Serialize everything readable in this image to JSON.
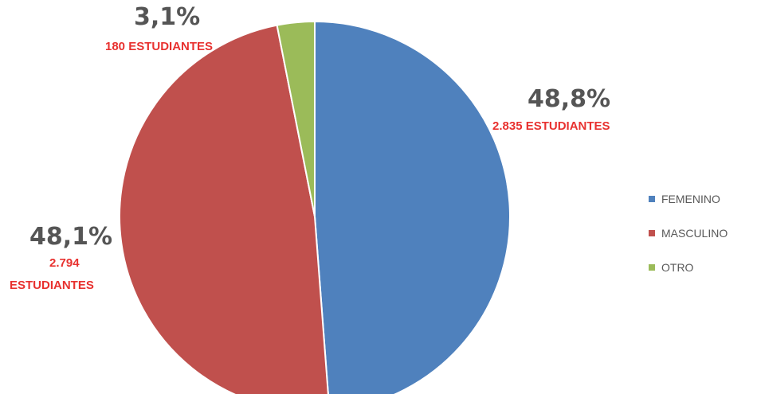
{
  "chart_data": {
    "type": "pie",
    "categories": [
      "FEMENINO",
      "MASCULINO",
      "OTRO"
    ],
    "values": [
      48.8,
      48.1,
      3.1
    ],
    "colors": [
      "#4f81bd",
      "#c0504d",
      "#9bbb59"
    ],
    "labels": {
      "femenino": {
        "percent": "48,8%",
        "count": "2.835 ESTUDIANTES"
      },
      "masculino": {
        "percent": "48,1%",
        "count_line1": "2.794",
        "count_line2": "ESTUDIANTES"
      },
      "otro": {
        "percent": "3,1%",
        "count": "180 ESTUDIANTES"
      }
    },
    "legend": {
      "placement": "right",
      "entries": [
        {
          "label": "FEMENINO",
          "color": "#4f81bd"
        },
        {
          "label": "MASCULINO",
          "color": "#c0504d"
        },
        {
          "label": "OTRO",
          "color": "#9bbb59"
        }
      ]
    }
  }
}
